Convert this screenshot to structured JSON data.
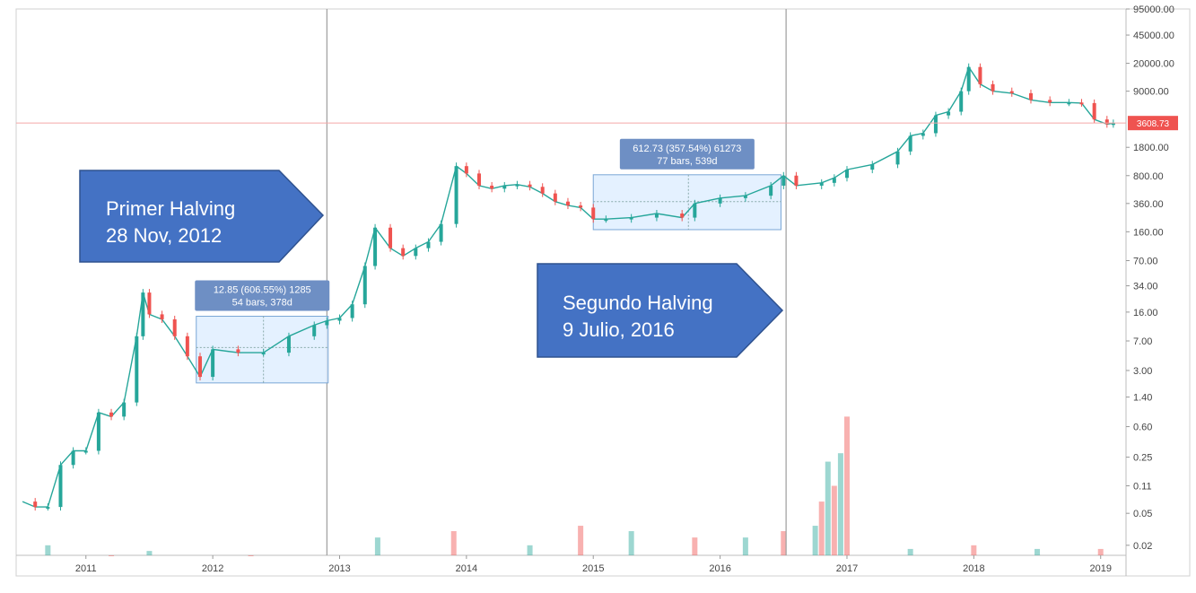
{
  "chart_data": {
    "type": "candlestick",
    "yscale": "log",
    "ylim": [
      0.015,
      95000
    ],
    "xlim": [
      2010.45,
      2019.2
    ],
    "x_ticks": [
      "2011",
      "2012",
      "2013",
      "2014",
      "2015",
      "2016",
      "2017",
      "2018",
      "2019"
    ],
    "x_tick_values": [
      2011,
      2012,
      2013,
      2014,
      2015,
      2016,
      2017,
      2018,
      2019
    ],
    "y_ticks": [
      "95000.00",
      "45000.00",
      "20000.00",
      "9000.00",
      "3608.73",
      "1800.00",
      "800.00",
      "360.00",
      "160.00",
      "70.00",
      "34.00",
      "16.00",
      "7.00",
      "3.00",
      "1.40",
      "0.60",
      "0.25",
      "0.11",
      "0.05",
      "0.02"
    ],
    "y_tick_values": [
      95000,
      45000,
      20000,
      9000,
      3608.73,
      1800,
      800,
      360,
      160,
      70,
      34,
      16,
      7,
      3,
      1.4,
      0.6,
      0.25,
      0.11,
      0.05,
      0.02
    ],
    "last_price": "3608.73",
    "last_price_value": 3608.73,
    "series": [
      {
        "x": [
          2010.5,
          2010.6,
          2010.7,
          2010.8,
          2010.9,
          2011.0,
          2011.1,
          2011.2,
          2011.3,
          2011.4,
          2011.45,
          2011.5,
          2011.6,
          2011.7,
          2011.8,
          2011.9,
          2012.0,
          2012.2,
          2012.4,
          2012.6,
          2012.8,
          2012.9,
          2013.0,
          2013.1,
          2013.2,
          2013.28,
          2013.4,
          2013.5,
          2013.6,
          2013.7,
          2013.8,
          2013.92,
          2014.0,
          2014.1,
          2014.2,
          2014.3,
          2014.4,
          2014.5,
          2014.6,
          2014.7,
          2014.8,
          2014.9,
          2015.0,
          2015.1,
          2015.3,
          2015.5,
          2015.7,
          2015.8,
          2016.0,
          2016.2,
          2016.4,
          2016.5,
          2016.6,
          2016.8,
          2016.9,
          2017.0,
          2017.2,
          2017.4,
          2017.5,
          2017.6,
          2017.7,
          2017.8,
          2017.9,
          2017.96,
          2018.05,
          2018.15,
          2018.3,
          2018.45,
          2018.6,
          2018.75,
          2018.85,
          2018.95,
          2019.05,
          2019.1
        ],
        "y": [
          0.07,
          0.06,
          0.06,
          0.2,
          0.3,
          0.3,
          0.9,
          0.8,
          1.2,
          8,
          28,
          15,
          13,
          8,
          4.5,
          2.5,
          5.5,
          5,
          5,
          8,
          11,
          12.5,
          13.5,
          20,
          60,
          180,
          100,
          80,
          100,
          120,
          200,
          1050,
          850,
          600,
          550,
          600,
          620,
          580,
          480,
          380,
          340,
          320,
          230,
          230,
          240,
          270,
          240,
          360,
          420,
          450,
          600,
          800,
          600,
          650,
          750,
          950,
          1100,
          1600,
          2500,
          2700,
          4500,
          5000,
          9000,
          18000,
          11000,
          9000,
          8500,
          7000,
          6500,
          6500,
          6400,
          4000,
          3500,
          3600
        ]
      }
    ],
    "volume": {
      "x": [
        2010.7,
        2011.2,
        2011.5,
        2012.3,
        2013.3,
        2013.9,
        2014.5,
        2014.9,
        2015.3,
        2015.8,
        2016.2,
        2016.5,
        2016.75,
        2016.8,
        2016.85,
        2016.9,
        2016.95,
        2017.0,
        2017.5,
        2018.0,
        2018.5,
        2019.0
      ],
      "y": [
        0.02,
        0.015,
        0.017,
        0.015,
        0.025,
        0.03,
        0.02,
        0.035,
        0.03,
        0.025,
        0.025,
        0.03,
        0.035,
        0.07,
        0.22,
        0.11,
        0.28,
        0.8,
        0.018,
        0.02,
        0.018,
        0.018
      ]
    },
    "halvings": [
      2012.9,
      2016.52
    ],
    "measure_boxes": [
      {
        "line1": "12.85 (606.55%) 1285",
        "line2": "54 bars, 378d",
        "x0": 2011.87,
        "x1": 2012.91,
        "y0": 2.1,
        "y1": 14.2,
        "xmid": 2012.4,
        "ymid": 5.8
      },
      {
        "line1": "612.73 (357.54%) 61273",
        "line2": "77 bars, 539d",
        "x0": 2015.0,
        "x1": 2016.48,
        "y0": 170,
        "y1": 820,
        "xmid": 2015.75,
        "ymid": 380
      }
    ],
    "annotations": [
      {
        "line1": "Primer Halving",
        "line2": "28 Nov, 2012"
      },
      {
        "line1": "Segundo Halving",
        "line2": "9 Julio, 2016"
      }
    ],
    "colors": {
      "up": "#26a69a",
      "down": "#ef5350",
      "halving_line": "#9e9e9e",
      "price_line": "#f4a7a7",
      "price_label_bg": "#ef5350",
      "callout_fill": "#4472c4",
      "callout_border": "#2f528f",
      "measure_fill": "#ddeeff",
      "measure_border": "#7aa7d6",
      "measure_label_bg": "#6e8fc4"
    }
  }
}
